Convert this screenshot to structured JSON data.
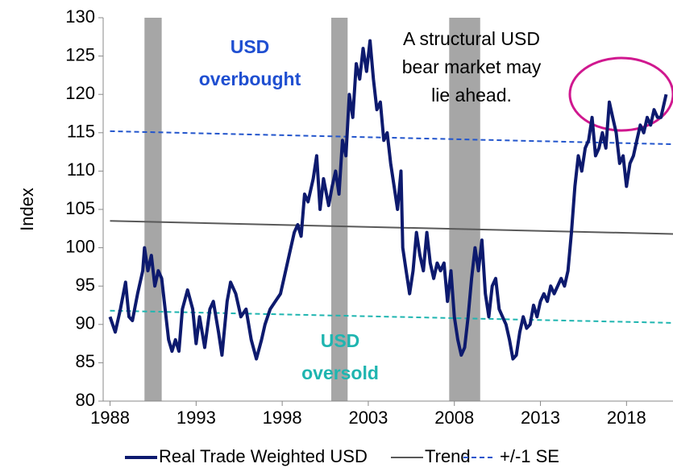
{
  "chart_data": {
    "type": "line",
    "y_label": "Index",
    "xlim": [
      1987.6,
      2020.7
    ],
    "ylim": [
      80,
      130
    ],
    "xticks": [
      1988,
      1993,
      1998,
      2003,
      2008,
      2013,
      2018
    ],
    "yticks": [
      80,
      85,
      90,
      95,
      100,
      105,
      110,
      115,
      120,
      125,
      130
    ],
    "recessions": [
      [
        1990.0,
        1991.0
      ],
      [
        2000.85,
        2001.8
      ],
      [
        2007.7,
        2009.5
      ]
    ],
    "recession_color": "#a6a6a6",
    "annotations": [
      {
        "lines": [
          "USD",
          "overbought"
        ],
        "color": "#1f4fd1"
      },
      {
        "lines": [
          "A structural USD",
          "bear market may",
          "lie ahead."
        ],
        "color": "#000000"
      },
      {
        "lines": [
          "USD",
          "oversold"
        ],
        "color": "#1fb5b0"
      }
    ],
    "series": [
      {
        "name": "Real Trade Weighted USD",
        "color": "#0d1a6e",
        "style": "solid",
        "width": 4,
        "x": [
          1988.0,
          1988.3,
          1988.6,
          1988.9,
          1989.1,
          1989.3,
          1989.6,
          1989.9,
          1990.0,
          1990.2,
          1990.4,
          1990.6,
          1990.8,
          1991.0,
          1991.2,
          1991.4,
          1991.6,
          1991.8,
          1992.0,
          1992.2,
          1992.5,
          1992.8,
          1993.0,
          1993.2,
          1993.5,
          1993.8,
          1994.0,
          1994.3,
          1994.5,
          1994.8,
          1995.0,
          1995.3,
          1995.6,
          1995.9,
          1996.2,
          1996.5,
          1996.8,
          1997.0,
          1997.3,
          1997.6,
          1997.9,
          1998.1,
          1998.4,
          1998.7,
          1998.9,
          1999.1,
          1999.3,
          1999.5,
          1999.8,
          2000.0,
          2000.2,
          2000.4,
          2000.7,
          2000.9,
          2001.1,
          2001.3,
          2001.5,
          2001.7,
          2001.9,
          2002.1,
          2002.3,
          2002.5,
          2002.7,
          2002.9,
          2003.1,
          2003.3,
          2003.5,
          2003.7,
          2003.9,
          2004.1,
          2004.3,
          2004.5,
          2004.7,
          2004.9,
          2005.0,
          2005.2,
          2005.4,
          2005.6,
          2005.8,
          2006.0,
          2006.2,
          2006.4,
          2006.6,
          2006.8,
          2007.0,
          2007.2,
          2007.4,
          2007.6,
          2007.8,
          2008.0,
          2008.2,
          2008.4,
          2008.6,
          2008.8,
          2009.0,
          2009.2,
          2009.4,
          2009.6,
          2009.8,
          2010.0,
          2010.2,
          2010.4,
          2010.6,
          2010.8,
          2011.0,
          2011.2,
          2011.4,
          2011.6,
          2011.8,
          2012.0,
          2012.2,
          2012.4,
          2012.6,
          2012.8,
          2013.0,
          2013.2,
          2013.4,
          2013.6,
          2013.8,
          2014.0,
          2014.2,
          2014.4,
          2014.6,
          2014.8,
          2015.0,
          2015.2,
          2015.4,
          2015.6,
          2015.8,
          2016.0,
          2016.2,
          2016.4,
          2016.6,
          2016.8,
          2017.0,
          2017.2,
          2017.4,
          2017.6,
          2017.8,
          2018.0,
          2018.2,
          2018.4,
          2018.6,
          2018.8,
          2019.0,
          2019.2,
          2019.4,
          2019.6,
          2019.8,
          2020.0,
          2020.3
        ],
        "values": [
          91,
          89,
          92,
          95.5,
          91,
          90.5,
          94,
          97,
          100,
          97,
          99,
          95,
          97,
          96,
          92,
          88,
          86.5,
          88,
          86.5,
          92,
          94.5,
          92,
          87.5,
          91,
          87,
          92,
          93,
          89,
          86,
          93,
          95.5,
          94,
          91,
          92,
          88,
          85.5,
          88,
          90,
          92,
          93,
          94,
          96,
          99,
          102,
          103,
          101.5,
          107,
          106,
          109,
          112,
          105,
          109,
          105.5,
          108,
          110,
          107,
          114,
          112,
          120,
          117,
          124,
          122,
          126,
          123,
          127,
          122,
          118,
          119,
          114,
          115,
          111,
          108,
          105,
          110,
          100,
          97,
          94,
          97,
          102,
          99,
          97,
          102,
          98,
          96,
          98,
          97,
          98,
          93,
          97,
          91,
          88,
          86,
          87,
          91,
          96,
          100,
          97,
          101,
          94,
          91,
          95,
          96,
          92,
          91,
          90,
          88,
          85.5,
          86,
          89,
          91,
          89.5,
          90,
          92.5,
          91,
          93,
          94,
          93,
          95,
          94,
          95,
          96,
          95,
          97,
          102,
          108,
          112,
          110,
          113,
          114,
          117,
          112,
          113,
          115,
          113,
          119,
          117,
          115,
          111,
          112,
          108,
          111,
          112,
          114,
          116,
          115,
          117,
          116,
          118,
          117,
          117,
          120
        ]
      },
      {
        "name": "Trend",
        "color": "#595959",
        "style": "solid",
        "width": 2,
        "x": [
          1988.0,
          2020.7
        ],
        "values": [
          103.5,
          101.8
        ]
      },
      {
        "name": "+/-1 SE",
        "color": "#2255cc",
        "style": "dashed",
        "width": 2,
        "x": [
          1988.0,
          2020.7
        ],
        "values": [
          115.2,
          113.5
        ]
      },
      {
        "color": "#1fb5b0",
        "style": "dashed",
        "width": 2,
        "x": [
          1988.0,
          2020.7
        ],
        "values": [
          91.8,
          90.2
        ]
      }
    ]
  }
}
